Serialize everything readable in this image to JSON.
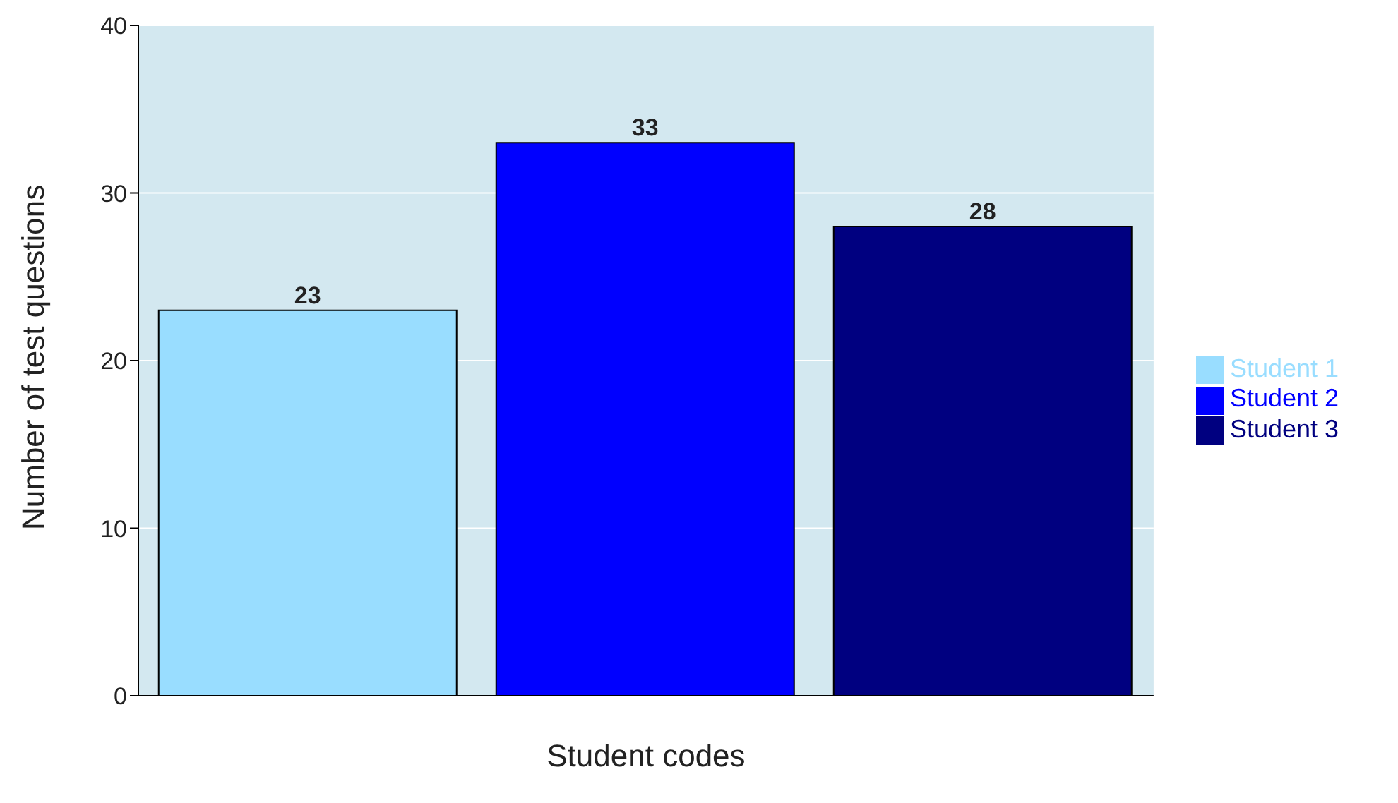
{
  "chart_data": {
    "type": "bar",
    "xlabel": "Student codes",
    "ylabel": "Number of test questions",
    "categories": [
      null
    ],
    "series": [
      {
        "name": "Student 1",
        "color": "#99ddff",
        "values": [
          23
        ]
      },
      {
        "name": "Student 2",
        "color": "#0000ff",
        "values": [
          33
        ]
      },
      {
        "name": "Student 3",
        "color": "#000080",
        "values": [
          28
        ]
      }
    ],
    "ylim": [
      0,
      40
    ],
    "yticks": [
      0,
      10,
      20,
      30,
      40
    ],
    "grid": "y",
    "legend": "right",
    "data_labels": true
  }
}
